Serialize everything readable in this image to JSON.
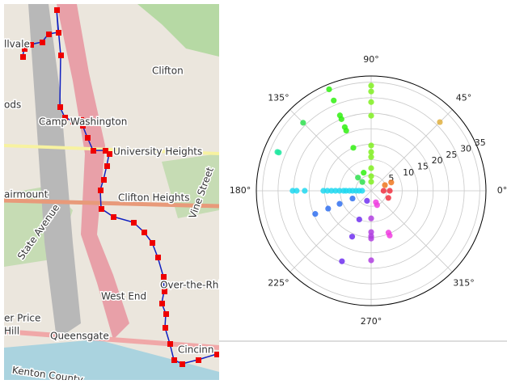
{
  "map": {
    "labels": [
      "llvale",
      "ods",
      "Clifton",
      "Camp Washington",
      "University Heights",
      "airmount",
      "Clifton Heights",
      "Vine Street",
      "State Avenue",
      "West End",
      "Over-the-Rhi",
      "er Price",
      "Hill",
      "Queensgate",
      "Cincinn",
      "Kenton County"
    ]
  },
  "chart_data": {
    "type": "polar-scatter",
    "rlim": [
      0,
      37
    ],
    "rticks": [
      5,
      10,
      15,
      20,
      25,
      30,
      35
    ],
    "thetaticks": [
      {
        "value": 0,
        "label": "0°"
      },
      {
        "value": 45,
        "label": "45°"
      },
      {
        "value": 90,
        "label": "90°"
      },
      {
        "value": 135,
        "label": "135°"
      },
      {
        "value": 180,
        "label": "180°"
      },
      {
        "value": 225,
        "label": "225°"
      },
      {
        "value": 270,
        "label": "270°"
      },
      {
        "value": 315,
        "label": "315°"
      }
    ],
    "grid": true,
    "series": [
      {
        "color": "#80f020",
        "theta": [
          90,
          90,
          90,
          90,
          90,
          90,
          90,
          90,
          90,
          90
        ],
        "r": [
          33.9,
          32,
          28.6,
          24.2,
          14.6,
          12.5,
          10.9,
          7.3,
          4.7,
          2.9
        ]
      },
      {
        "color": "#30f010",
        "theta": [
          112.5,
          112.5,
          112.5,
          112.5,
          112.5,
          112.5,
          112.5,
          112.5
        ],
        "r": [
          35.4,
          31.5,
          26.3,
          25,
          22.2,
          21,
          15,
          6.3
        ]
      },
      {
        "color": "#30e050",
        "theta": [
          135,
          135,
          135
        ],
        "r": [
          31,
          6,
          4
        ]
      },
      {
        "color": "#20e8a0",
        "theta": [
          157.5,
          157.5
        ],
        "r": [
          32.7,
          32.2
        ]
      },
      {
        "color": "#20d8f0",
        "theta": [
          180,
          180,
          180,
          180,
          180,
          180,
          180,
          180,
          180,
          180,
          180,
          180,
          180,
          180,
          180
        ],
        "r": [
          25.3,
          24,
          21.4,
          15.4,
          14.1,
          12.8,
          11.5,
          10.2,
          8.9,
          8.1,
          7,
          6,
          4.9,
          3.9,
          2.9
        ]
      },
      {
        "color": "#3070f0",
        "theta": [
          202.5,
          202.5,
          202.5,
          202.5
        ],
        "r": [
          19.5,
          15,
          11,
          6.5
        ]
      },
      {
        "color": "#7030f0",
        "theta": [
          247.5,
          247.5,
          247.5,
          247.5
        ],
        "r": [
          24.6,
          16,
          10,
          3.5
        ]
      },
      {
        "color": "#b040e0",
        "theta": [
          270,
          270,
          270,
          270,
          270
        ],
        "r": [
          8.9,
          13.3,
          14.6,
          15.4,
          22.4
        ]
      },
      {
        "color": "#f040e0",
        "theta": [
          292.5,
          292.5,
          292.5,
          292.5
        ],
        "r": [
          14.6,
          15.6,
          4,
          5
        ]
      },
      {
        "color": "#f03040",
        "theta": [
          337.5,
          0,
          0
        ],
        "r": [
          6,
          6,
          4
        ]
      },
      {
        "color": "#f07820",
        "theta": [
          22.5,
          22.5
        ],
        "r": [
          4.8,
          7
        ]
      },
      {
        "color": "#e0b040",
        "theta": [
          45
        ],
        "r": [
          31.3
        ]
      }
    ]
  }
}
